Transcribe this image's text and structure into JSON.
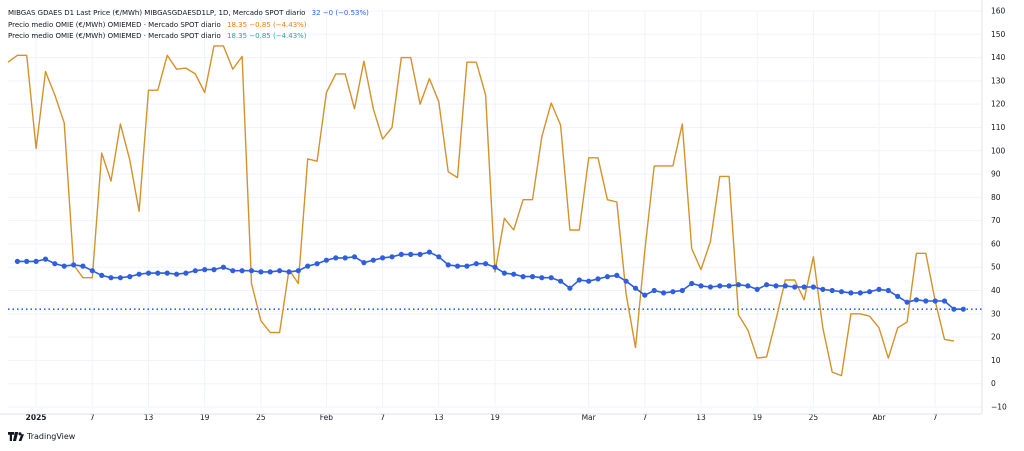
{
  "legend": {
    "row1": {
      "label": "MIBGAS GDAES D1 Last Price (€/MWh) MIBGASGDAESD1LP, 1D, Mercado SPOT diario",
      "values": "32  −0 (−0.53%)",
      "color": "#2962ff"
    },
    "row2": {
      "label": "Precio medio OMIE (€/MWh) OMIEMED · Mercado SPOT diario",
      "values": "18.35  −0.85 (−4.43%)",
      "color": "#f57c00"
    },
    "row3": {
      "label": "Precio medio OMIE (€/MWh) OMIEMED · Mercado SPOT diario",
      "values": "18.35  −0.85 (−4.43%)",
      "color": "#26a69a"
    }
  },
  "attribution": {
    "label": "TradingView"
  },
  "colors": {
    "gas": "#2f5fe0",
    "omie": "#d4922a",
    "grid": "#f0f3fa",
    "axis_text": "#131722",
    "last_line": "#2962ff"
  },
  "chart_data": {
    "type": "line",
    "x_tick_labels": [
      "2025",
      "7",
      "13",
      "19",
      "25",
      "Feb",
      "7",
      "13",
      "19",
      "Mar",
      "7",
      "13",
      "19",
      "25",
      "Abr",
      "7"
    ],
    "x_tick_dates": [
      "2025-01-01",
      "2025-01-07",
      "2025-01-13",
      "2025-01-19",
      "2025-01-25",
      "2025-02-01",
      "2025-02-07",
      "2025-02-13",
      "2025-02-19",
      "2025-03-01",
      "2025-03-07",
      "2025-03-13",
      "2025-03-19",
      "2025-03-25",
      "2025-04-01",
      "2025-04-07"
    ],
    "y_ticks": [
      -10,
      0,
      10,
      20,
      30,
      40,
      50,
      60,
      70,
      80,
      90,
      100,
      110,
      120,
      130,
      140,
      150,
      160
    ],
    "ylim": [
      -10,
      160
    ],
    "xlim": [
      "2024-12-29",
      "2025-04-12"
    ],
    "y_axis_position": "right",
    "grid": true,
    "last_value_line": 32,
    "series": [
      {
        "name": "MIBGAS GDAES D1 Last Price (€/MWh)",
        "color": "#2f5fe0",
        "markers": true,
        "points": [
          [
            "2024-12-30",
            52.5
          ],
          [
            "2024-12-31",
            52.5
          ],
          [
            "2025-01-01",
            52.5
          ],
          [
            "2025-01-02",
            53.5
          ],
          [
            "2025-01-03",
            51.5
          ],
          [
            "2025-01-04",
            50.5
          ],
          [
            "2025-01-05",
            51.0
          ],
          [
            "2025-01-06",
            50.5
          ],
          [
            "2025-01-07",
            48.5
          ],
          [
            "2025-01-08",
            46.5
          ],
          [
            "2025-01-09",
            45.5
          ],
          [
            "2025-01-10",
            45.5
          ],
          [
            "2025-01-11",
            46.0
          ],
          [
            "2025-01-12",
            47.0
          ],
          [
            "2025-01-13",
            47.5
          ],
          [
            "2025-01-14",
            47.5
          ],
          [
            "2025-01-15",
            47.5
          ],
          [
            "2025-01-16",
            47.0
          ],
          [
            "2025-01-17",
            47.5
          ],
          [
            "2025-01-18",
            48.5
          ],
          [
            "2025-01-19",
            49.0
          ],
          [
            "2025-01-20",
            49.0
          ],
          [
            "2025-01-21",
            50.0
          ],
          [
            "2025-01-22",
            48.5
          ],
          [
            "2025-01-23",
            48.5
          ],
          [
            "2025-01-24",
            48.5
          ],
          [
            "2025-01-25",
            48.0
          ],
          [
            "2025-01-26",
            48.0
          ],
          [
            "2025-01-27",
            48.5
          ],
          [
            "2025-01-28",
            48.0
          ],
          [
            "2025-01-29",
            48.5
          ],
          [
            "2025-01-30",
            50.5
          ],
          [
            "2025-01-31",
            51.5
          ],
          [
            "2025-02-01",
            53.0
          ],
          [
            "2025-02-02",
            54.0
          ],
          [
            "2025-02-03",
            54.0
          ],
          [
            "2025-02-04",
            54.5
          ],
          [
            "2025-02-05",
            52.0
          ],
          [
            "2025-02-06",
            53.0
          ],
          [
            "2025-02-07",
            54.0
          ],
          [
            "2025-02-08",
            54.5
          ],
          [
            "2025-02-09",
            55.5
          ],
          [
            "2025-02-10",
            55.5
          ],
          [
            "2025-02-11",
            55.5
          ],
          [
            "2025-02-12",
            56.5
          ],
          [
            "2025-02-13",
            54.5
          ],
          [
            "2025-02-14",
            51.0
          ],
          [
            "2025-02-15",
            50.5
          ],
          [
            "2025-02-16",
            50.5
          ],
          [
            "2025-02-17",
            51.5
          ],
          [
            "2025-02-18",
            51.5
          ],
          [
            "2025-02-19",
            50.0
          ],
          [
            "2025-02-20",
            47.5
          ],
          [
            "2025-02-21",
            47.0
          ],
          [
            "2025-02-22",
            46.0
          ],
          [
            "2025-02-23",
            46.0
          ],
          [
            "2025-02-24",
            45.5
          ],
          [
            "2025-02-25",
            45.5
          ],
          [
            "2025-02-26",
            44.0
          ],
          [
            "2025-02-27",
            41.0
          ],
          [
            "2025-02-28",
            44.5
          ],
          [
            "2025-03-01",
            44.0
          ],
          [
            "2025-03-02",
            45.0
          ],
          [
            "2025-03-03",
            46.0
          ],
          [
            "2025-03-04",
            46.5
          ],
          [
            "2025-03-05",
            44.0
          ],
          [
            "2025-03-06",
            41.0
          ],
          [
            "2025-03-07",
            38.0
          ],
          [
            "2025-03-08",
            40.0
          ],
          [
            "2025-03-09",
            39.0
          ],
          [
            "2025-03-10",
            39.5
          ],
          [
            "2025-03-11",
            40.0
          ],
          [
            "2025-03-12",
            43.0
          ],
          [
            "2025-03-13",
            42.0
          ],
          [
            "2025-03-14",
            41.5
          ],
          [
            "2025-03-15",
            42.0
          ],
          [
            "2025-03-16",
            42.0
          ],
          [
            "2025-03-17",
            42.5
          ],
          [
            "2025-03-18",
            42.0
          ],
          [
            "2025-03-19",
            40.5
          ],
          [
            "2025-03-20",
            42.5
          ],
          [
            "2025-03-21",
            42.0
          ],
          [
            "2025-03-22",
            42.0
          ],
          [
            "2025-03-23",
            41.5
          ],
          [
            "2025-03-24",
            41.5
          ],
          [
            "2025-03-25",
            41.5
          ],
          [
            "2025-03-26",
            40.5
          ],
          [
            "2025-03-27",
            40.0
          ],
          [
            "2025-03-28",
            39.5
          ],
          [
            "2025-03-29",
            39.0
          ],
          [
            "2025-03-30",
            39.0
          ],
          [
            "2025-03-31",
            39.5
          ],
          [
            "2025-04-01",
            40.5
          ],
          [
            "2025-04-02",
            40.0
          ],
          [
            "2025-04-03",
            37.5
          ],
          [
            "2025-04-04",
            35.0
          ],
          [
            "2025-04-05",
            36.0
          ],
          [
            "2025-04-06",
            35.5
          ],
          [
            "2025-04-07",
            35.5
          ],
          [
            "2025-04-08",
            35.5
          ],
          [
            "2025-04-09",
            32.0
          ],
          [
            "2025-04-10",
            32.0
          ]
        ]
      },
      {
        "name": "Precio medio OMIE (€/MWh)",
        "color": "#d4922a",
        "markers": false,
        "points": [
          [
            "2024-12-29",
            138
          ],
          [
            "2024-12-30",
            141
          ],
          [
            "2024-12-31",
            141
          ],
          [
            "2025-01-01",
            101
          ],
          [
            "2025-01-02",
            134
          ],
          [
            "2025-01-03",
            124
          ],
          [
            "2025-01-04",
            112
          ],
          [
            "2025-01-05",
            51
          ],
          [
            "2025-01-06",
            45.5
          ],
          [
            "2025-01-07",
            45.5
          ],
          [
            "2025-01-08",
            99
          ],
          [
            "2025-01-09",
            87
          ],
          [
            "2025-01-10",
            111.5
          ],
          [
            "2025-01-11",
            96
          ],
          [
            "2025-01-12",
            74
          ],
          [
            "2025-01-13",
            126
          ],
          [
            "2025-01-14",
            126
          ],
          [
            "2025-01-15",
            141
          ],
          [
            "2025-01-16",
            135
          ],
          [
            "2025-01-17",
            135.5
          ],
          [
            "2025-01-18",
            133
          ],
          [
            "2025-01-19",
            125
          ],
          [
            "2025-01-20",
            145
          ],
          [
            "2025-01-21",
            145
          ],
          [
            "2025-01-22",
            135
          ],
          [
            "2025-01-23",
            140.5
          ],
          [
            "2025-01-24",
            43
          ],
          [
            "2025-01-25",
            27
          ],
          [
            "2025-01-26",
            22
          ],
          [
            "2025-01-27",
            22
          ],
          [
            "2025-01-28",
            49
          ],
          [
            "2025-01-29",
            43
          ],
          [
            "2025-01-30",
            96.5
          ],
          [
            "2025-01-31",
            95.5
          ],
          [
            "2025-02-01",
            125
          ],
          [
            "2025-02-02",
            133
          ],
          [
            "2025-02-03",
            133
          ],
          [
            "2025-02-04",
            118
          ],
          [
            "2025-02-05",
            138.5
          ],
          [
            "2025-02-06",
            118
          ],
          [
            "2025-02-07",
            105
          ],
          [
            "2025-02-08",
            110
          ],
          [
            "2025-02-09",
            140
          ],
          [
            "2025-02-10",
            140
          ],
          [
            "2025-02-11",
            120
          ],
          [
            "2025-02-12",
            131
          ],
          [
            "2025-02-13",
            121
          ],
          [
            "2025-02-14",
            91
          ],
          [
            "2025-02-15",
            88.5
          ],
          [
            "2025-02-16",
            138
          ],
          [
            "2025-02-17",
            138
          ],
          [
            "2025-02-18",
            124
          ],
          [
            "2025-02-19",
            48
          ],
          [
            "2025-02-20",
            71
          ],
          [
            "2025-02-21",
            66
          ],
          [
            "2025-02-22",
            79
          ],
          [
            "2025-02-23",
            79
          ],
          [
            "2025-02-24",
            106
          ],
          [
            "2025-02-25",
            120.5
          ],
          [
            "2025-02-26",
            111
          ],
          [
            "2025-02-27",
            66
          ],
          [
            "2025-02-28",
            66
          ],
          [
            "2025-03-01",
            97
          ],
          [
            "2025-03-02",
            97
          ],
          [
            "2025-03-03",
            79
          ],
          [
            "2025-03-04",
            78
          ],
          [
            "2025-03-05",
            38.5
          ],
          [
            "2025-03-06",
            15.5
          ],
          [
            "2025-03-07",
            57
          ],
          [
            "2025-03-08",
            93.5
          ],
          [
            "2025-03-09",
            93.5
          ],
          [
            "2025-03-10",
            93.5
          ],
          [
            "2025-03-11",
            111.5
          ],
          [
            "2025-03-12",
            58
          ],
          [
            "2025-03-13",
            49
          ],
          [
            "2025-03-14",
            61
          ],
          [
            "2025-03-15",
            89
          ],
          [
            "2025-03-16",
            89
          ],
          [
            "2025-03-17",
            29.5
          ],
          [
            "2025-03-18",
            23
          ],
          [
            "2025-03-19",
            11
          ],
          [
            "2025-03-20",
            11.5
          ],
          [
            "2025-03-21",
            27.5
          ],
          [
            "2025-03-22",
            44.5
          ],
          [
            "2025-03-23",
            44.5
          ],
          [
            "2025-03-24",
            36
          ],
          [
            "2025-03-25",
            54.5
          ],
          [
            "2025-03-26",
            24
          ],
          [
            "2025-03-27",
            5
          ],
          [
            "2025-03-28",
            3.5
          ],
          [
            "2025-03-29",
            30
          ],
          [
            "2025-03-30",
            30
          ],
          [
            "2025-03-31",
            29
          ],
          [
            "2025-04-01",
            24
          ],
          [
            "2025-04-02",
            11
          ],
          [
            "2025-04-03",
            24
          ],
          [
            "2025-04-04",
            26.5
          ],
          [
            "2025-04-05",
            56
          ],
          [
            "2025-04-06",
            56
          ],
          [
            "2025-04-07",
            35.5
          ],
          [
            "2025-04-08",
            19
          ],
          [
            "2025-04-09",
            18.35
          ]
        ]
      }
    ]
  }
}
